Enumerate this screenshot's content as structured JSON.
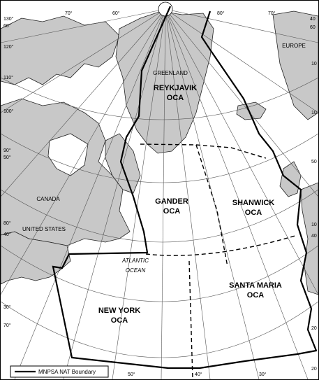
{
  "regions": {
    "reykjavik": [
      "REYKJAVIK",
      "OCA"
    ],
    "gander": [
      "GANDER",
      "OCA"
    ],
    "shanwick": [
      "SHANWICK",
      "OCA"
    ],
    "santa_maria": [
      "SANTA MARIA",
      "OCA"
    ],
    "new_york": [
      "NEW YORK",
      "OCA"
    ]
  },
  "geo_labels": {
    "greenland": "GREENLAND",
    "europe": "EUROPE",
    "canada": "CANADA",
    "united_states": "UNITED STATES",
    "ocean_line1": "ATLANTIC",
    "ocean_line2": "OCEAN"
  },
  "legend": {
    "label": "MNPSA NAT Boundary"
  },
  "degree_labels": {
    "top": [
      "70°",
      "60°",
      "80°",
      "70°"
    ],
    "top_left": [
      "130°",
      "60°"
    ],
    "left": [
      "120°",
      "110°",
      "100°",
      "90°",
      "50°",
      "80°",
      "40°",
      "30°",
      "70°"
    ],
    "right": [
      "40",
      "60",
      "10",
      "10",
      "50",
      "10",
      "40",
      "20",
      "20"
    ],
    "bottom": [
      "50°",
      "40°",
      "30°"
    ]
  },
  "colors": {
    "land": "#c8c8c8",
    "ocean": "#ffffff",
    "boundary": "#000000",
    "graticule": "#555555"
  }
}
